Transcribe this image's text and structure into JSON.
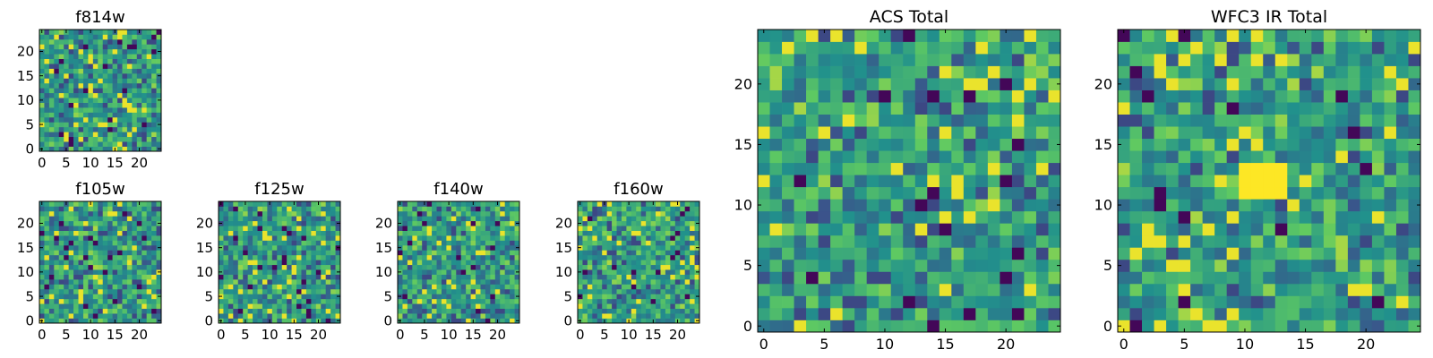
{
  "chart_data": [
    {
      "type": "heatmap",
      "title": "f814w",
      "xlabel": "",
      "ylabel": "",
      "grid_size": 25,
      "xlim": [
        -0.5,
        24.5
      ],
      "ylim": [
        -0.5,
        24.5
      ],
      "xticks": [
        0,
        5,
        10,
        15,
        20
      ],
      "yticks": [
        0,
        5,
        10,
        15,
        20
      ],
      "colormap": "viridis",
      "grid": false
    },
    {
      "type": "heatmap",
      "title": "f105w",
      "xlabel": "",
      "ylabel": "",
      "grid_size": 25,
      "xlim": [
        -0.5,
        24.5
      ],
      "ylim": [
        -0.5,
        24.5
      ],
      "xticks": [
        0,
        5,
        10,
        15,
        20
      ],
      "yticks": [
        0,
        5,
        10,
        15,
        20
      ],
      "colormap": "viridis",
      "grid": false
    },
    {
      "type": "heatmap",
      "title": "f125w",
      "xlabel": "",
      "ylabel": "",
      "grid_size": 25,
      "xlim": [
        -0.5,
        24.5
      ],
      "ylim": [
        -0.5,
        24.5
      ],
      "xticks": [
        0,
        5,
        10,
        15,
        20
      ],
      "yticks": [
        0,
        5,
        10,
        15,
        20
      ],
      "colormap": "viridis",
      "grid": false
    },
    {
      "type": "heatmap",
      "title": "f140w",
      "xlabel": "",
      "ylabel": "",
      "grid_size": 25,
      "xlim": [
        -0.5,
        24.5
      ],
      "ylim": [
        -0.5,
        24.5
      ],
      "xticks": [
        0,
        5,
        10,
        15,
        20
      ],
      "yticks": [
        0,
        5,
        10,
        15,
        20
      ],
      "colormap": "viridis",
      "grid": false
    },
    {
      "type": "heatmap",
      "title": "f160w",
      "xlabel": "",
      "ylabel": "",
      "grid_size": 25,
      "xlim": [
        -0.5,
        24.5
      ],
      "ylim": [
        -0.5,
        24.5
      ],
      "xticks": [
        0,
        5,
        10,
        15,
        20
      ],
      "yticks": [
        0,
        5,
        10,
        15,
        20
      ],
      "colormap": "viridis",
      "grid": false
    },
    {
      "type": "heatmap",
      "title": "ACS Total",
      "xlabel": "",
      "ylabel": "",
      "grid_size": 25,
      "xlim": [
        -0.5,
        24.5
      ],
      "ylim": [
        -0.5,
        24.5
      ],
      "xticks": [
        0,
        5,
        10,
        15,
        20
      ],
      "yticks": [
        0,
        5,
        10,
        15,
        20
      ],
      "colormap": "viridis",
      "grid": false
    },
    {
      "type": "heatmap",
      "title": "WFC3 IR Total",
      "xlabel": "",
      "ylabel": "",
      "grid_size": 25,
      "xlim": [
        -0.5,
        24.5
      ],
      "ylim": [
        -0.5,
        24.5
      ],
      "xticks": [
        0,
        5,
        10,
        15,
        20
      ],
      "yticks": [
        0,
        5,
        10,
        15,
        20
      ],
      "colormap": "viridis",
      "grid": false,
      "feature": {
        "bright_region_x": [
          10,
          13
        ],
        "bright_region_y": [
          11,
          13
        ]
      }
    }
  ]
}
